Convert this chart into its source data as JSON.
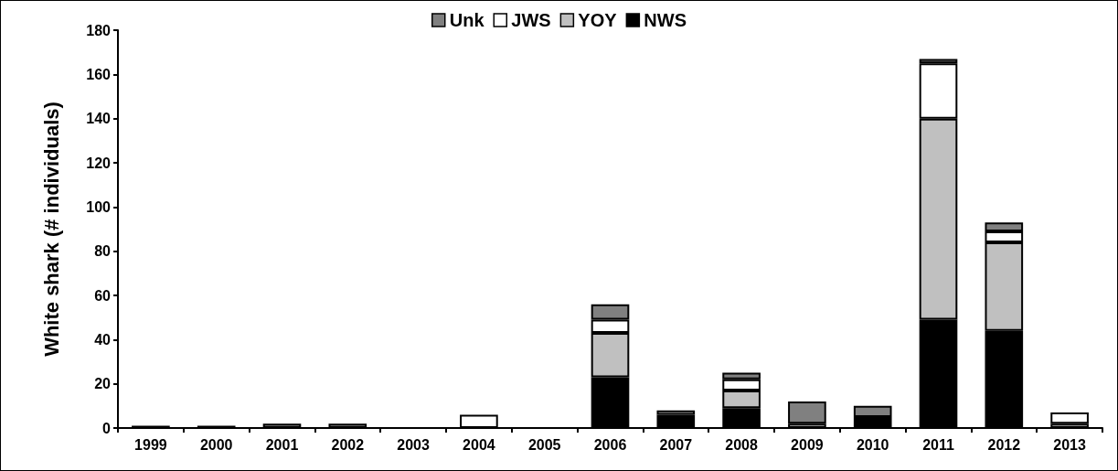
{
  "chart_data": {
    "type": "bar",
    "stacked": true,
    "ylabel": "White shark (# individuals)",
    "categories": [
      "1999",
      "2000",
      "2001",
      "2002",
      "2003",
      "2004",
      "2005",
      "2006",
      "2007",
      "2008",
      "2009",
      "2010",
      "2011",
      "2012",
      "2013"
    ],
    "series": [
      {
        "name": "NWS",
        "color": "#000000",
        "values": [
          1,
          1,
          0,
          0,
          0,
          0,
          0,
          23,
          6,
          9,
          0,
          5,
          49,
          44,
          0
        ]
      },
      {
        "name": "YOY",
        "color": "#c0c0c0",
        "values": [
          0,
          0,
          0,
          0,
          0,
          0,
          0,
          20,
          2,
          8,
          2,
          0,
          91,
          40,
          2
        ]
      },
      {
        "name": "JWS",
        "color": "#ffffff",
        "values": [
          0,
          0,
          0,
          0,
          0,
          6,
          0,
          6,
          0,
          5,
          0,
          0,
          25,
          5,
          5
        ]
      },
      {
        "name": "Unk",
        "color": "#808080",
        "values": [
          0,
          0,
          2,
          2,
          0,
          0,
          0,
          7,
          0,
          3,
          10,
          5,
          2,
          4,
          0
        ]
      }
    ],
    "ylim": [
      0,
      180
    ],
    "yticks": [
      0,
      20,
      40,
      60,
      80,
      100,
      120,
      140,
      160,
      180
    ],
    "grid": false,
    "legend": "top"
  }
}
